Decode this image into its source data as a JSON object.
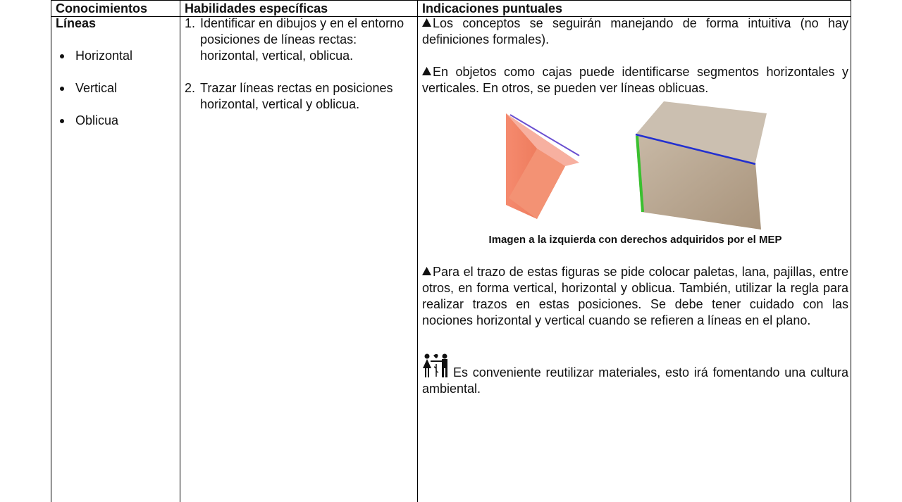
{
  "table": {
    "headers": [
      "Conocimientos",
      "Habilidades específicas",
      "Indicaciones puntuales"
    ],
    "conocimientos": {
      "title": "Líneas",
      "items": [
        "Horizontal",
        "Vertical",
        "Oblicua"
      ]
    },
    "habilidades": [
      {
        "number": "1.",
        "text": "Identificar en dibujos y en el entorno posiciones de líneas rectas: horizontal, vertical, oblicua."
      },
      {
        "number": "2.",
        "text": "Trazar líneas rectas en posiciones horizontal, vertical y oblicua."
      }
    ],
    "indicaciones": {
      "p1": "Los conceptos se seguirán manejando de forma intuitiva (no hay definiciones formales).",
      "p2": "En objetos como cajas puede identificarse segmentos horizontales y verticales. En otros, se pueden ver líneas oblicuas.",
      "caption": "Imagen a la izquierda con derechos adquiridos por el MEP",
      "p3": "Para el trazo de estas figuras se pide colocar paletas, lana, pajillas, entre otros, en forma vertical, horizontal y oblicua. También, utilizar la regla para realizar trazos en estas posiciones. Se debe tener cuidado con las nociones horizontal y vertical cuando se refieren a líneas en el plano.",
      "p4": "Es conveniente reutilizar materiales, esto irá fomentando una cultura ambiental."
    }
  }
}
